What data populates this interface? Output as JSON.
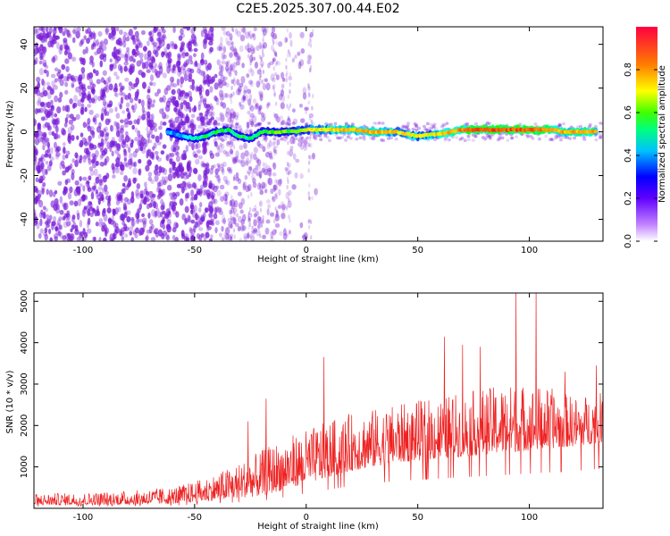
{
  "title": "C2E5.2025.307.00.44.E02",
  "colors": {
    "snr_line": "#ee2222",
    "spec_dot": "#7a1fd8",
    "axis": "#000000"
  },
  "chart_data": [
    {
      "type": "heatmap",
      "name": "spectrogram",
      "xlabel": "Height of straight line (km)",
      "ylabel": "Frequency (Hz)",
      "xlim": [
        -122,
        133
      ],
      "ylim": [
        -50,
        48
      ],
      "xticks": [
        -100,
        -50,
        0,
        50,
        100
      ],
      "yticks": [
        -40,
        -20,
        0,
        20,
        40
      ],
      "xtick_labels": [
        "-100",
        "-50",
        "0",
        "50",
        "100"
      ],
      "ytick_labels": [
        "-40",
        "-20",
        "0",
        "20",
        "40"
      ],
      "colorbar": {
        "label": "Normalized spectral amplitude",
        "range": [
          0,
          1
        ],
        "ticks": [
          0.0,
          0.2,
          0.4,
          0.6,
          0.8
        ],
        "tick_labels": [
          "0.0",
          "0.2",
          "0.4",
          "0.6",
          "0.8"
        ],
        "colormap": [
          "#ffffff",
          "#8000ff",
          "#0000ff",
          "#00ffff",
          "#00ff00",
          "#ffff00",
          "#ff8000",
          "#ff0000"
        ]
      },
      "ridge": {
        "description_free": true,
        "x": [
          -62,
          -55,
          -50,
          -45,
          -40,
          -35,
          -30,
          -25,
          -20,
          -15,
          -10,
          -5,
          0,
          10,
          20,
          30,
          40,
          50,
          60,
          70,
          80,
          90,
          100,
          110,
          115,
          120,
          130
        ],
        "freq": [
          0,
          -2,
          -3,
          -2,
          0,
          1,
          -2,
          -3,
          0,
          0,
          0,
          0,
          1,
          1,
          1,
          0,
          0,
          -2,
          -1,
          1,
          1,
          1,
          1,
          1,
          0,
          0,
          0
        ],
        "amplitude": [
          0.35,
          0.4,
          0.45,
          0.5,
          0.55,
          0.5,
          0.55,
          0.5,
          0.55,
          0.6,
          0.6,
          0.65,
          0.7,
          0.75,
          0.8,
          0.8,
          0.75,
          0.7,
          0.75,
          0.85,
          0.9,
          0.9,
          0.9,
          0.85,
          0.8,
          0.8,
          0.8
        ]
      }
    },
    {
      "type": "line",
      "name": "snr",
      "xlabel": "Height of straight line (km)",
      "ylabel": "SNR (10 * v/v)",
      "xlim": [
        -122,
        133
      ],
      "ylim": [
        0,
        5200
      ],
      "xticks": [
        -100,
        -50,
        0,
        50,
        100
      ],
      "yticks": [
        1000,
        2000,
        3000,
        4000,
        5000
      ],
      "xtick_labels": [
        "-100",
        "-50",
        "0",
        "50",
        "100"
      ],
      "ytick_labels": [
        "1000",
        "2000",
        "3000",
        "4000",
        "5000"
      ],
      "envelope": {
        "x": [
          -122,
          -100,
          -80,
          -60,
          -50,
          -40,
          -30,
          -20,
          -10,
          0,
          10,
          20,
          30,
          40,
          50,
          60,
          70,
          80,
          90,
          100,
          110,
          120,
          133
        ],
        "low": [
          80,
          80,
          90,
          110,
          150,
          200,
          250,
          300,
          450,
          600,
          750,
          900,
          1000,
          1100,
          1150,
          1200,
          1250,
          1300,
          1350,
          1400,
          1450,
          1500,
          1600
        ],
        "high": [
          350,
          380,
          420,
          520,
          650,
          850,
          1100,
          1400,
          1700,
          1900,
          2100,
          2300,
          2400,
          2500,
          2600,
          2700,
          2800,
          2900,
          3000,
          3000,
          2900,
          2700,
          2800
        ]
      },
      "peaks": [
        {
          "x": -26,
          "y": 2100
        },
        {
          "x": -18,
          "y": 2650
        },
        {
          "x": 8,
          "y": 3650
        },
        {
          "x": 62,
          "y": 4150
        },
        {
          "x": 70,
          "y": 3950
        },
        {
          "x": 78,
          "y": 3900
        },
        {
          "x": 94,
          "y": 5200
        },
        {
          "x": 103,
          "y": 5200
        },
        {
          "x": 116,
          "y": 3300
        },
        {
          "x": 130,
          "y": 3450
        }
      ]
    }
  ]
}
